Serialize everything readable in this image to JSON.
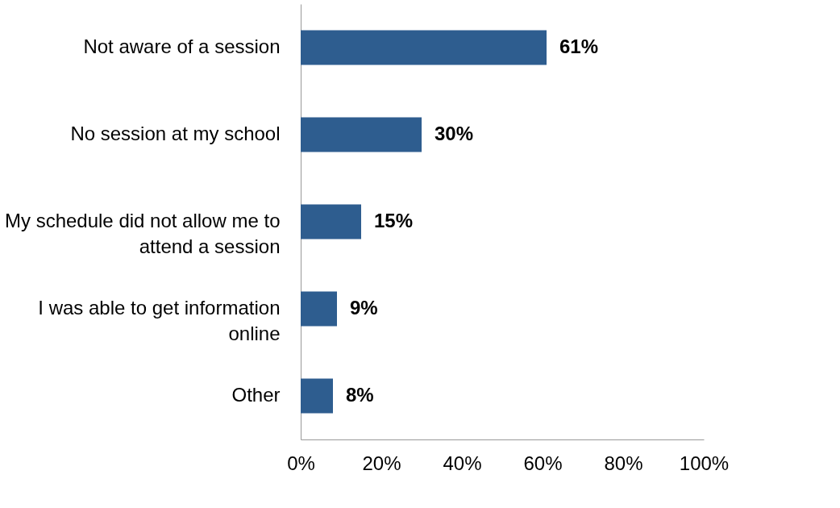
{
  "chart_data": {
    "type": "bar",
    "orientation": "horizontal",
    "categories": [
      "Not aware of a session",
      "No session at my school",
      "My schedule did not allow me to attend a session",
      "I was able to get information online",
      "Other"
    ],
    "values": [
      61,
      30,
      15,
      9,
      8
    ],
    "value_labels": [
      "61%",
      "30%",
      "15%",
      "9%",
      "8%"
    ],
    "color": "#2e5d8f",
    "xlim": [
      0,
      100
    ],
    "xticks": [
      {
        "value": 0,
        "label": "0%"
      },
      {
        "value": 20,
        "label": "20%"
      },
      {
        "value": 40,
        "label": "40%"
      },
      {
        "value": 60,
        "label": "60%"
      },
      {
        "value": 80,
        "label": "80%"
      },
      {
        "value": 100,
        "label": "100%"
      }
    ],
    "grid": false
  }
}
